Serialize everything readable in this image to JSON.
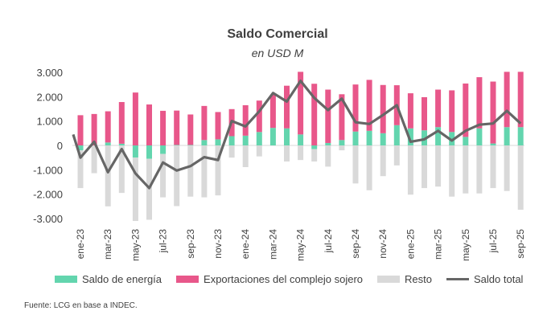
{
  "chart_data": {
    "type": "bar",
    "title": "Saldo Comercial",
    "subtitle": "en USD M",
    "ylim": [
      -3000,
      3000
    ],
    "yticks": [
      3000,
      2000,
      1000,
      0,
      -1000,
      -2000,
      -3000
    ],
    "ytick_labels": [
      "3.000",
      "2.000",
      "1.000",
      "0",
      "-1.000",
      "-2.000",
      "-3.000"
    ],
    "categories": [
      "ene-23",
      "feb-23",
      "mar-23",
      "abr-23",
      "may-23",
      "jun-23",
      "jul-23",
      "ago-23",
      "sep-23",
      "oct-23",
      "nov-23",
      "dic-23",
      "ene-24",
      "feb-24",
      "mar-24",
      "abr-24",
      "may-24",
      "jun-24",
      "jul-24",
      "ago-24",
      "sep-24",
      "oct-24",
      "nov-24",
      "dic-24",
      "ene-25",
      "feb-25",
      "mar-25",
      "abr-25",
      "may-25",
      "jun-25",
      "jul-25",
      "ago-25",
      "sep-25"
    ],
    "xtick_labels_shown": [
      "ene-23",
      "mar-23",
      "may-23",
      "jul-23",
      "sep-23",
      "nov-23",
      "ene-24",
      "mar-24",
      "may-24",
      "jul-24",
      "sep-24",
      "nov-24",
      "ene-25",
      "mar-25",
      "may-25",
      "jul-25",
      "sep-25"
    ],
    "stacked": true,
    "series": [
      {
        "name": "Saldo de energía",
        "type": "bar",
        "color": "#63d5ae",
        "values": [
          -200,
          0,
          120,
          70,
          -500,
          -550,
          -350,
          20,
          20,
          220,
          250,
          380,
          400,
          550,
          720,
          700,
          450,
          -150,
          100,
          220,
          570,
          600,
          500,
          830,
          700,
          620,
          750,
          550,
          350,
          700,
          80,
          750,
          750
        ]
      },
      {
        "name": "Exportaciones del complejo sojero",
        "type": "bar",
        "color": "#e8578a",
        "values": [
          1240,
          1290,
          1280,
          1710,
          2170,
          1680,
          1420,
          1410,
          1250,
          1400,
          1120,
          1110,
          1250,
          1290,
          1360,
          1750,
          2570,
          2530,
          2190,
          1880,
          1930,
          2090,
          1980,
          1640,
          1440,
          1360,
          1540,
          1710,
          2190,
          2100,
          2540,
          2270,
          2270
        ]
      },
      {
        "name": "Resto",
        "type": "bar",
        "color": "#d9d9d9",
        "values": [
          -1550,
          -1140,
          -2500,
          -1950,
          -2600,
          -2500,
          -1780,
          -2490,
          -2100,
          -2130,
          -2050,
          -500,
          -890,
          -450,
          0,
          -660,
          -600,
          -510,
          -870,
          -200,
          -1560,
          -1840,
          -1260,
          -820,
          -2020,
          -1750,
          -1690,
          -2100,
          -1970,
          -1970,
          -1750,
          -1870,
          -2640
        ]
      },
      {
        "name": "Saldo total",
        "type": "line",
        "color": "#666666",
        "values": [
          -500,
          150,
          -1100,
          -150,
          -1150,
          -1750,
          -700,
          -1030,
          -850,
          -480,
          -600,
          1000,
          780,
          1400,
          2150,
          1800,
          2650,
          1950,
          1450,
          1920,
          950,
          880,
          1250,
          1650,
          150,
          250,
          600,
          200,
          600,
          850,
          900,
          1420,
          900
        ]
      }
    ],
    "legend": "bottom",
    "source": "Fuente: LCG en base a INDEC."
  }
}
